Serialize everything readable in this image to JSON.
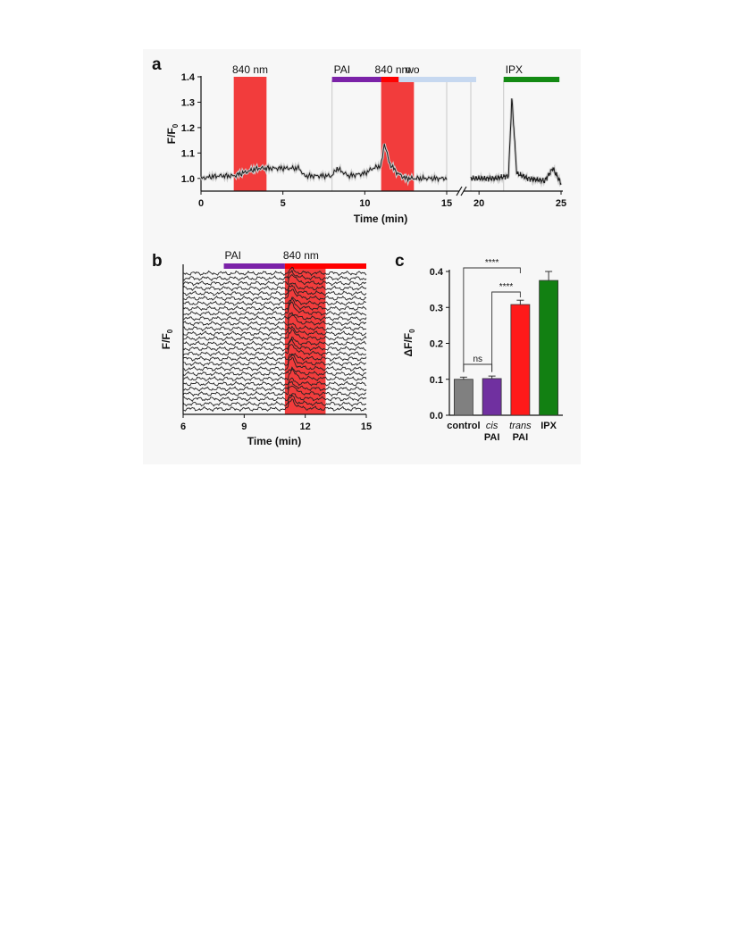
{
  "panels": {
    "a": {
      "letter": "a",
      "ylabel": "F/F0",
      "xlabel": "Time (min)",
      "yticks": [
        "1.4",
        "1.3",
        "1.2",
        "1.1",
        "1.0"
      ],
      "xticks_left": [
        "0",
        "5",
        "10",
        "15"
      ],
      "xticks_right": [
        "20",
        "25"
      ],
      "bars": [
        {
          "label": "840 nm",
          "color": "#f03030",
          "kind": "shade"
        },
        {
          "label": "PAI",
          "color": "#7b22a8",
          "kind": "bar"
        },
        {
          "label": "840 nm",
          "color": "#ff0000",
          "kind": "bar"
        },
        {
          "label": "wo",
          "color": "#c6d8f0",
          "kind": "bar"
        },
        {
          "label": "IPX",
          "color": "#138a13",
          "kind": "bar"
        }
      ]
    },
    "b": {
      "letter": "b",
      "ylabel": "F/F0",
      "xlabel": "Time (min)",
      "xticks": [
        "6",
        "9",
        "12",
        "15"
      ],
      "bars": [
        {
          "label": "PAI",
          "color": "#7b22a8"
        },
        {
          "label": "840 nm",
          "color": "#ff0000"
        }
      ]
    },
    "c": {
      "letter": "c",
      "ylabel": "ΔF/F0",
      "yticks": [
        "0.4",
        "0.3",
        "0.2",
        "0.1",
        "0.0"
      ],
      "categories": [
        {
          "line1": "control",
          "line2": "",
          "italic1": false
        },
        {
          "line1": "cis",
          "line2": "PAI",
          "italic1": true
        },
        {
          "line1": "trans",
          "line2": "PAI",
          "italic1": true
        },
        {
          "line1": "IPX",
          "line2": "",
          "italic1": false
        }
      ],
      "significance": [
        "****",
        "****",
        "ns"
      ]
    }
  },
  "chart_data": [
    {
      "type": "line",
      "panel": "a",
      "xlabel": "Time (min)",
      "ylabel": "F/F0",
      "xlim": [
        0,
        25
      ],
      "ylim": [
        0.95,
        1.4
      ],
      "axis_break": [
        15,
        19.5
      ],
      "stimuli": [
        {
          "label": "840 nm",
          "start": 2,
          "end": 4
        },
        {
          "label": "PAI",
          "start": 8,
          "end": 11
        },
        {
          "label": "840 nm",
          "start": 11,
          "end": 15,
          "shaded_until": 13
        }
      ],
      "stimuli_right": [
        {
          "label": "wo",
          "start": 15,
          "end": 20
        },
        {
          "label": "IPX",
          "start": 21.5,
          "end": 25
        }
      ],
      "series": [
        {
          "x": [
            0,
            1,
            2,
            2.5,
            3,
            3.5,
            4,
            5,
            6,
            6.3,
            7,
            8,
            8.3,
            9,
            10,
            10.5,
            11,
            11.2,
            11.5,
            12,
            12.5,
            13,
            14,
            15,
            19.5,
            20,
            21,
            21.8,
            22,
            22.3,
            23,
            24,
            24.5,
            25
          ],
          "y": [
            1.0,
            1.01,
            1.01,
            1.02,
            1.03,
            1.04,
            1.04,
            1.04,
            1.04,
            1.01,
            1.01,
            1.01,
            1.04,
            1.01,
            1.02,
            1.04,
            1.05,
            1.14,
            1.06,
            1.02,
            1.0,
            1.0,
            1.0,
            1.0,
            1.0,
            1.0,
            1.0,
            1.01,
            1.32,
            1.02,
            1.0,
            0.99,
            1.04,
            0.98
          ]
        }
      ]
    },
    {
      "type": "line",
      "panel": "b",
      "xlabel": "Time (min)",
      "ylabel": "F/F0",
      "xlim": [
        6,
        15
      ],
      "stimuli": [
        {
          "label": "PAI",
          "start": 8,
          "end": 11
        },
        {
          "label": "840 nm",
          "start": 11,
          "end": 15,
          "shaded_until": 13
        }
      ],
      "trace_count": 28,
      "response_time": 11.3
    },
    {
      "type": "bar",
      "panel": "c",
      "ylabel": "ΔF/F0",
      "categories": [
        "control",
        "cis PAI",
        "trans PAI",
        "IPX"
      ],
      "values": [
        0.1,
        0.102,
        0.308,
        0.375
      ],
      "errors": [
        0.006,
        0.007,
        0.012,
        0.025
      ],
      "colors": [
        "#808080",
        "#7030a0",
        "#ff1a1a",
        "#128012"
      ],
      "ylim": [
        0,
        0.4
      ],
      "comparisons": [
        {
          "from": "control",
          "to": "trans PAI",
          "label": "****"
        },
        {
          "from": "cis PAI",
          "to": "trans PAI",
          "label": "****"
        },
        {
          "from": "control",
          "to": "cis PAI",
          "label": "ns"
        }
      ]
    }
  ]
}
